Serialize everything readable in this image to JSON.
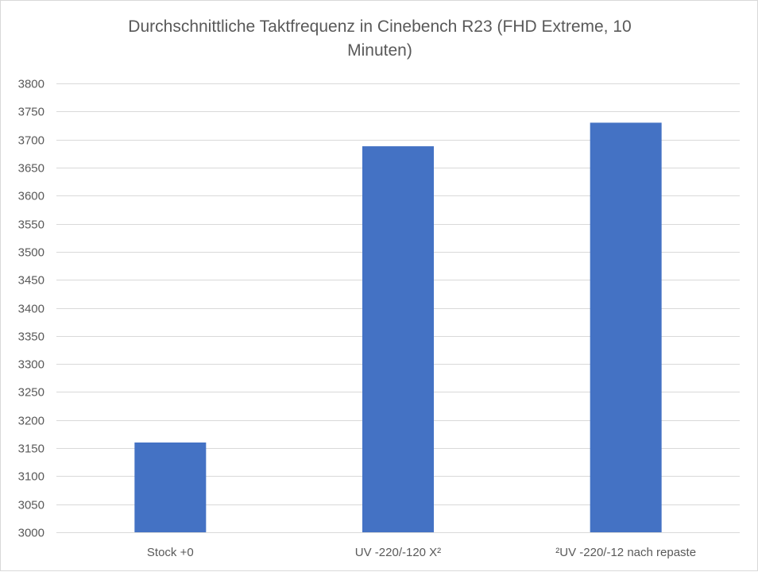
{
  "chart_data": {
    "type": "bar",
    "title": "Durchschnittliche Taktfrequenz in Cinebench R23 (FHD Extreme, 10 Minuten)",
    "categories": [
      "Stock +0",
      "UV -220/-120 X²",
      "²UV -220/-12 nach repaste"
    ],
    "values": [
      3160,
      3688,
      3730
    ],
    "ylim": [
      3000,
      3800
    ],
    "ytick_step": 50,
    "grid": true,
    "bar_color": "#4472C4",
    "grid_color": "#d9d9d9",
    "text_color": "#595959"
  }
}
